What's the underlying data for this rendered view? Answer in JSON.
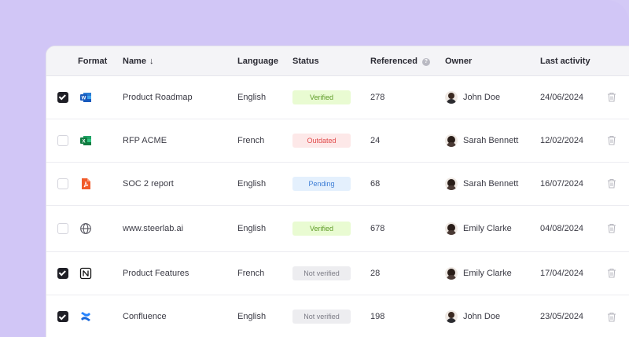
{
  "header": {
    "format": "Format",
    "name": "Name",
    "language": "Language",
    "status": "Status",
    "referenced": "Referenced",
    "owner": "Owner",
    "last_activity": "Last activity"
  },
  "icons": {
    "sort": "arrow-down-icon",
    "info": "info-icon",
    "delete": "trash-icon"
  },
  "colors": {
    "verified_bg": "#e9fbd2",
    "verified_fg": "#5d9a25",
    "outdated_bg": "#fde8e8",
    "outdated_fg": "#e04b4b",
    "pending_bg": "#e4f0fd",
    "pending_fg": "#3f7fd6",
    "notverified_bg": "#ededf0",
    "notverified_fg": "#7b7b85"
  },
  "rows": [
    {
      "checked": true,
      "format": "word-icon",
      "name": "Product Roadmap",
      "language": "English",
      "status": "Verified",
      "status_kind": "verified",
      "referenced": "278",
      "owner": "John Doe",
      "avatar": "male",
      "last_activity": "24/06/2024"
    },
    {
      "checked": false,
      "format": "excel-icon",
      "name": "RFP ACME",
      "language": "French",
      "status": "Outdated",
      "status_kind": "outdated",
      "referenced": "24",
      "owner": "Sarah Bennett",
      "avatar": "female",
      "last_activity": "12/02/2024"
    },
    {
      "checked": false,
      "format": "pdf-icon",
      "name": "SOC 2 report",
      "language": "English",
      "status": "Pending",
      "status_kind": "pending",
      "referenced": "68",
      "owner": "Sarah Bennett",
      "avatar": "female",
      "last_activity": "16/07/2024"
    },
    {
      "checked": false,
      "format": "globe-icon",
      "name": "www.steerlab.ai",
      "language": "English",
      "status": "Verified",
      "status_kind": "verified",
      "referenced": "678",
      "owner": "Emily Clarke",
      "avatar": "female",
      "last_activity": "04/08/2024"
    },
    {
      "checked": true,
      "format": "notion-icon",
      "name": "Product Features",
      "language": "French",
      "status": "Not verified",
      "status_kind": "notverified",
      "referenced": "28",
      "owner": "Emily Clarke",
      "avatar": "female",
      "last_activity": "17/04/2024"
    },
    {
      "checked": true,
      "format": "confluence-icon",
      "name": "Confluence",
      "language": "English",
      "status": "Not verified",
      "status_kind": "notverified",
      "referenced": "198",
      "owner": "John Doe",
      "avatar": "male",
      "last_activity": "23/05/2024"
    }
  ]
}
